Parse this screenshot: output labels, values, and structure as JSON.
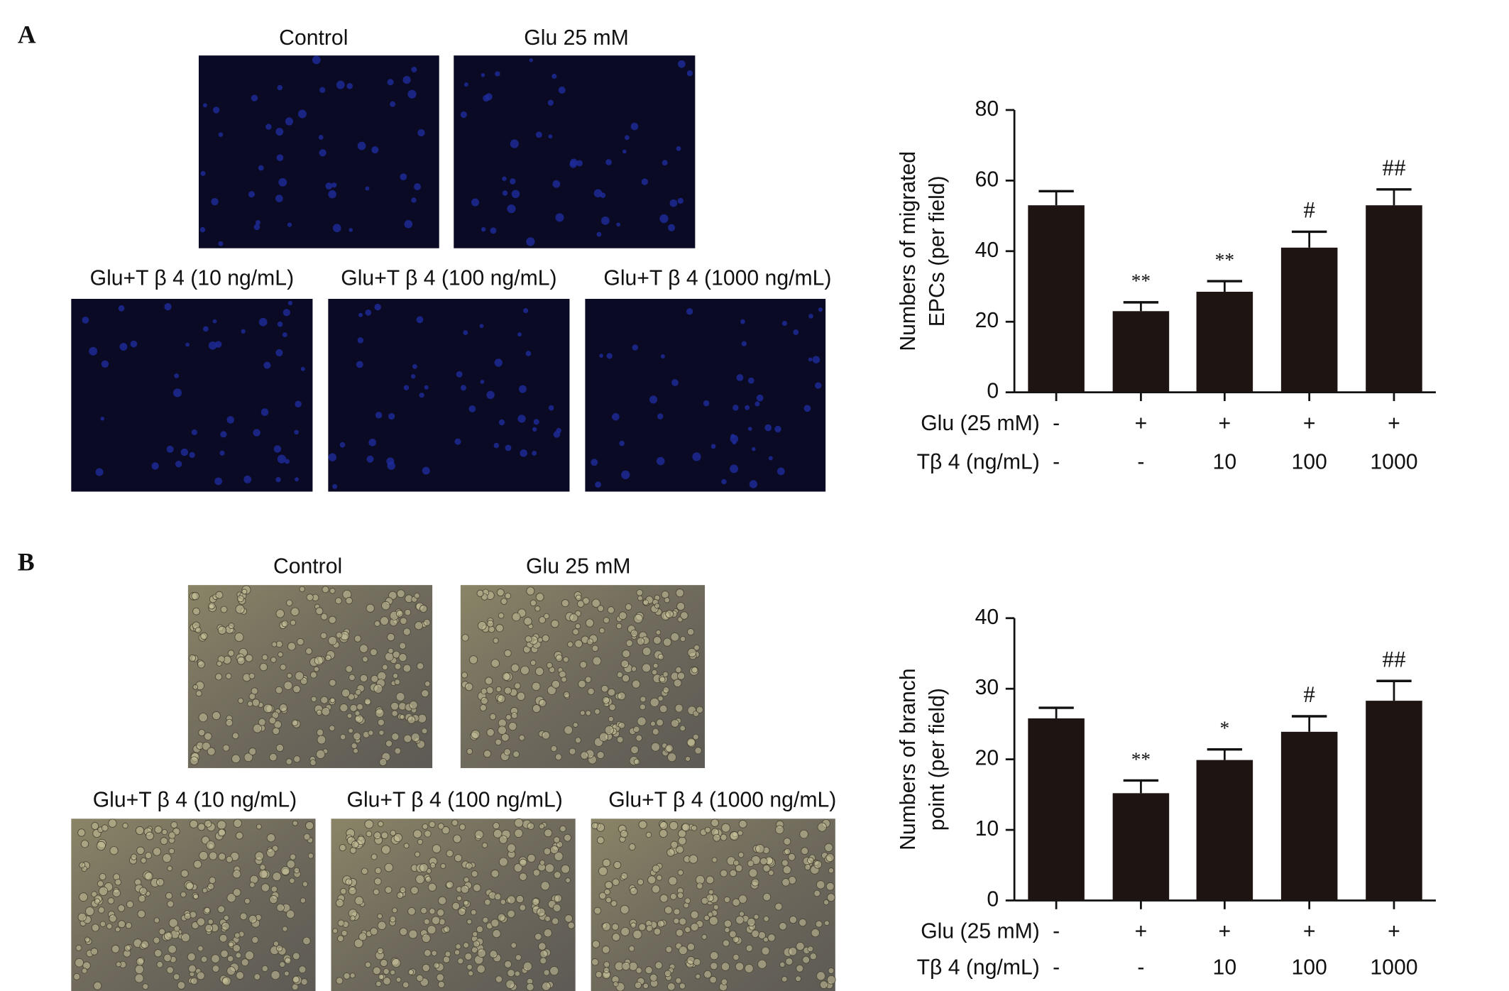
{
  "panels": [
    {
      "label": "A",
      "images": [
        "Control",
        "Glu 25 mM",
        "Glu+T β 4 (10 ng/mL)",
        "Glu+T β 4 (100 ng/mL)",
        "Glu+T β 4 (1000 ng/mL)"
      ]
    },
    {
      "label": "B",
      "images": [
        "Control",
        "Glu 25 mM",
        "Glu+T β 4 (10 ng/mL)",
        "Glu+T β 4 (100 ng/mL)",
        "Glu+T β 4 (1000 ng/mL)"
      ]
    }
  ],
  "chart_data": [
    {
      "type": "bar",
      "ylabel": [
        "Numbers of migrated",
        "EPCs (per field)"
      ],
      "category_rows": [
        {
          "label": "Glu (25 mM)",
          "values": [
            "-",
            "+",
            "+",
            "+",
            "+"
          ]
        },
        {
          "label": "Tβ 4 (ng/mL)",
          "values": [
            "-",
            "-",
            "10",
            "100",
            "1000"
          ]
        }
      ],
      "values": [
        53,
        23,
        28.5,
        41,
        53
      ],
      "errors": [
        4,
        2.5,
        3,
        4.5,
        4.5
      ],
      "significance": [
        null,
        "**",
        "**",
        "#",
        "##"
      ],
      "color": "#1e1513",
      "ylim": [
        0,
        80
      ],
      "yticks": [
        0,
        20,
        40,
        60,
        80
      ]
    },
    {
      "type": "bar",
      "ylabel": [
        "Numbers of branch",
        "point (per field)"
      ],
      "category_rows": [
        {
          "label": "Glu (25 mM)",
          "values": [
            "-",
            "+",
            "+",
            "+",
            "+"
          ]
        },
        {
          "label": "Tβ 4 (ng/mL)",
          "values": [
            "-",
            "-",
            "10",
            "100",
            "1000"
          ]
        }
      ],
      "values": [
        25.8,
        15.2,
        19.9,
        23.9,
        28.3
      ],
      "errors": [
        1.5,
        1.8,
        1.5,
        2.2,
        2.8
      ],
      "significance": [
        null,
        "**",
        "*",
        "#",
        "##"
      ],
      "color": "#1e1513",
      "ylim": [
        0,
        40
      ],
      "yticks": [
        0,
        10,
        20,
        30,
        40
      ]
    }
  ]
}
